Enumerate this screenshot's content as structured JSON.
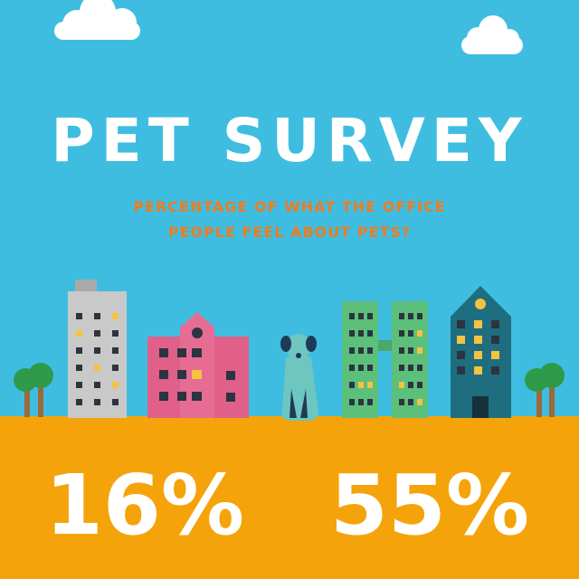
{
  "title": "PET SURVEY",
  "subtitle": {
    "lines": [
      "PERCENTAGE OF WHAT THE OFFICE",
      "PEOPLE FEEL ABOUT PETS?"
    ]
  },
  "stats": [
    "16%",
    "55%"
  ]
}
